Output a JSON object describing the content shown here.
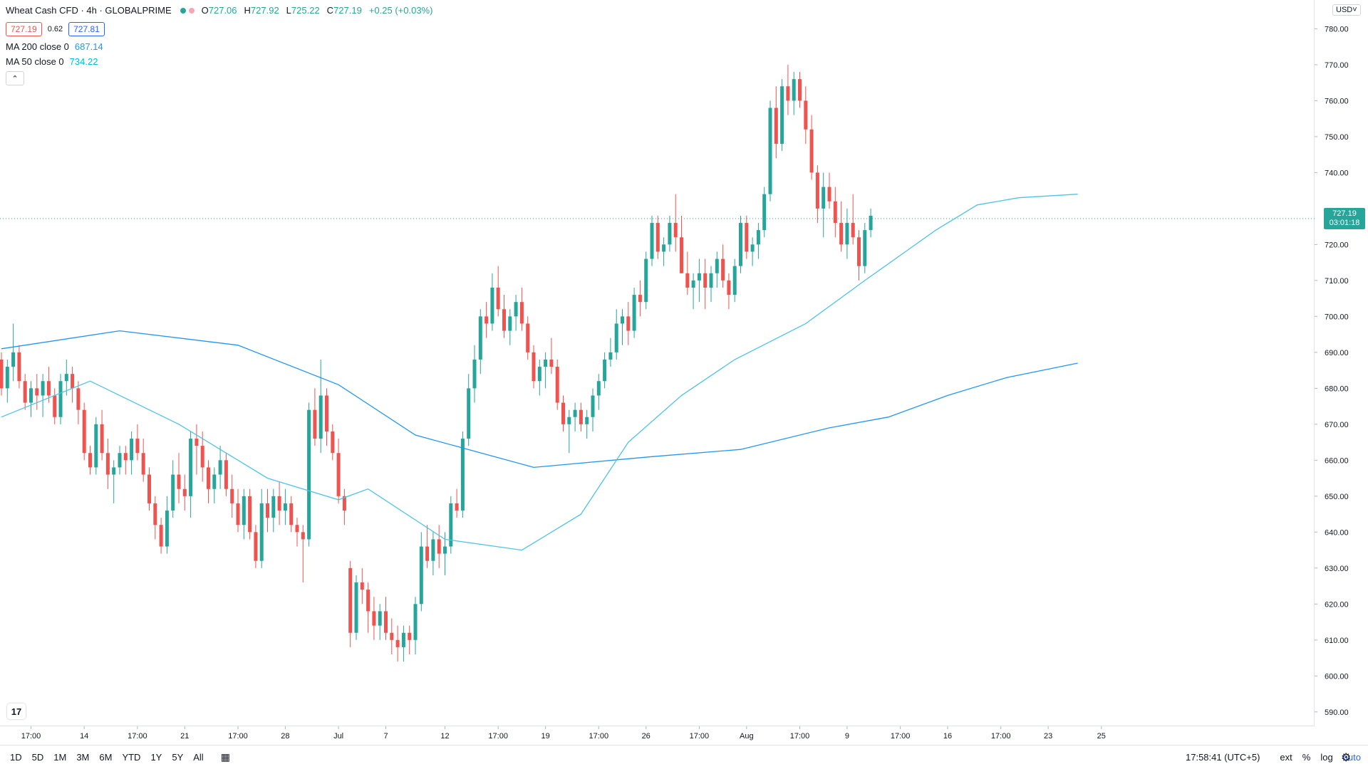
{
  "header": {
    "title": "Wheat Cash CFD · 4h · GLOBALPRIME",
    "ohlc": [
      {
        "label": "O",
        "value": "727.06"
      },
      {
        "label": "H",
        "value": "727.92"
      },
      {
        "label": "L",
        "value": "725.22"
      },
      {
        "label": "C",
        "value": "727.19"
      },
      {
        "label": "",
        "value": "+0.25 (+0.03%)"
      }
    ],
    "sell_price": "727.19",
    "spread": "0.62",
    "buy_price": "727.81"
  },
  "indicators": [
    {
      "label": "MA 200 close 0",
      "value": "687.14",
      "color": "#2196f3"
    },
    {
      "label": "MA 50 close 0",
      "value": "734.22",
      "color": "#00bcd4"
    }
  ],
  "price_axis": {
    "currency": "USD",
    "last_price": "727.19",
    "countdown": "03:01:18"
  },
  "bottom_bar": {
    "timeframes": [
      "1D",
      "5D",
      "1M",
      "3M",
      "6M",
      "YTD",
      "1Y",
      "5Y",
      "All"
    ],
    "time": "17:58:41 (UTC+5)",
    "right_controls": [
      "ext",
      "%",
      "log",
      "auto"
    ]
  },
  "colors": {
    "up": "#26a69a",
    "down": "#ef5350",
    "ma200": "#2196f3",
    "ma50": "#4dc3e6",
    "accent": "#2962ff"
  },
  "chart_data": {
    "type": "candlestick",
    "y_ticks": [
      590,
      600,
      610,
      620,
      630,
      640,
      650,
      660,
      670,
      680,
      690,
      700,
      710,
      720,
      730,
      740,
      750,
      760,
      770,
      780
    ],
    "ylim": [
      586,
      788
    ],
    "x_ticks": [
      {
        "label": "17:00",
        "i": 5
      },
      {
        "label": "14",
        "i": 14
      },
      {
        "label": "17:00",
        "i": 23
      },
      {
        "label": "21",
        "i": 31
      },
      {
        "label": "17:00",
        "i": 40
      },
      {
        "label": "28",
        "i": 48
      },
      {
        "label": "Jul",
        "i": 57
      },
      {
        "label": "7",
        "i": 65
      },
      {
        "label": "12",
        "i": 75
      },
      {
        "label": "17:00",
        "i": 84
      },
      {
        "label": "19",
        "i": 92
      },
      {
        "label": "17:00",
        "i": 101
      },
      {
        "label": "26",
        "i": 109
      },
      {
        "label": "17:00",
        "i": 118
      },
      {
        "label": "Aug",
        "i": 126
      },
      {
        "label": "17:00",
        "i": 135
      },
      {
        "label": "9",
        "i": 143
      },
      {
        "label": "17:00",
        "i": 152
      },
      {
        "label": "16",
        "i": 160
      },
      {
        "label": "17:00",
        "i": 169
      },
      {
        "label": "23",
        "i": 177
      },
      {
        "label": "25",
        "i": 186
      }
    ],
    "candles": [
      [
        688,
        690,
        678,
        680
      ],
      [
        680,
        688,
        676,
        686
      ],
      [
        686,
        698,
        682,
        690
      ],
      [
        690,
        692,
        680,
        682
      ],
      [
        682,
        684,
        674,
        676
      ],
      [
        676,
        682,
        672,
        680
      ],
      [
        680,
        684,
        674,
        678
      ],
      [
        678,
        684,
        672,
        682
      ],
      [
        682,
        686,
        676,
        678
      ],
      [
        678,
        680,
        670,
        672
      ],
      [
        672,
        684,
        670,
        682
      ],
      [
        682,
        688,
        678,
        684
      ],
      [
        684,
        686,
        676,
        680
      ],
      [
        680,
        682,
        670,
        674
      ],
      [
        674,
        676,
        660,
        662
      ],
      [
        662,
        664,
        656,
        658
      ],
      [
        658,
        672,
        656,
        670
      ],
      [
        670,
        674,
        660,
        662
      ],
      [
        662,
        666,
        652,
        656
      ],
      [
        656,
        660,
        648,
        658
      ],
      [
        658,
        664,
        656,
        662
      ],
      [
        662,
        664,
        656,
        660
      ],
      [
        660,
        668,
        656,
        666
      ],
      [
        666,
        670,
        660,
        662
      ],
      [
        662,
        666,
        654,
        656
      ],
      [
        656,
        658,
        646,
        648
      ],
      [
        648,
        650,
        638,
        642
      ],
      [
        642,
        644,
        634,
        636
      ],
      [
        636,
        650,
        634,
        646
      ],
      [
        646,
        660,
        644,
        656
      ],
      [
        656,
        662,
        648,
        652
      ],
      [
        652,
        656,
        646,
        650
      ],
      [
        650,
        668,
        644,
        666
      ],
      [
        666,
        670,
        656,
        664
      ],
      [
        664,
        668,
        654,
        658
      ],
      [
        658,
        660,
        648,
        652
      ],
      [
        652,
        658,
        648,
        656
      ],
      [
        656,
        664,
        652,
        660
      ],
      [
        660,
        662,
        650,
        652
      ],
      [
        652,
        656,
        644,
        648
      ],
      [
        648,
        652,
        640,
        642
      ],
      [
        642,
        652,
        638,
        650
      ],
      [
        650,
        652,
        638,
        640
      ],
      [
        640,
        642,
        630,
        632
      ],
      [
        632,
        652,
        630,
        648
      ],
      [
        648,
        652,
        640,
        644
      ],
      [
        644,
        652,
        640,
        650
      ],
      [
        650,
        654,
        642,
        646
      ],
      [
        646,
        652,
        642,
        648
      ],
      [
        648,
        650,
        640,
        642
      ],
      [
        642,
        644,
        636,
        640
      ],
      [
        640,
        642,
        626,
        638
      ],
      [
        638,
        676,
        636,
        674
      ],
      [
        674,
        680,
        664,
        666
      ],
      [
        666,
        688,
        662,
        678
      ],
      [
        678,
        680,
        664,
        668
      ],
      [
        668,
        670,
        660,
        662
      ],
      [
        662,
        666,
        648,
        650
      ],
      [
        650,
        652,
        642,
        646
      ],
      [
        630,
        632,
        608,
        612
      ],
      [
        612,
        628,
        610,
        626
      ],
      [
        626,
        630,
        620,
        624
      ],
      [
        624,
        626,
        612,
        618
      ],
      [
        618,
        622,
        610,
        614
      ],
      [
        614,
        620,
        610,
        618
      ],
      [
        618,
        622,
        610,
        612
      ],
      [
        612,
        616,
        606,
        610
      ],
      [
        610,
        614,
        604,
        608
      ],
      [
        608,
        614,
        604,
        612
      ],
      [
        612,
        614,
        606,
        610
      ],
      [
        610,
        622,
        606,
        620
      ],
      [
        620,
        640,
        618,
        636
      ],
      [
        636,
        642,
        630,
        632
      ],
      [
        632,
        640,
        628,
        638
      ],
      [
        638,
        642,
        630,
        634
      ],
      [
        634,
        640,
        628,
        636
      ],
      [
        636,
        650,
        634,
        648
      ],
      [
        648,
        652,
        644,
        646
      ],
      [
        646,
        668,
        644,
        666
      ],
      [
        666,
        684,
        664,
        680
      ],
      [
        680,
        692,
        676,
        688
      ],
      [
        688,
        702,
        684,
        700
      ],
      [
        700,
        704,
        694,
        698
      ],
      [
        698,
        712,
        696,
        708
      ],
      [
        708,
        714,
        700,
        702
      ],
      [
        702,
        706,
        694,
        696
      ],
      [
        696,
        702,
        692,
        700
      ],
      [
        700,
        706,
        696,
        704
      ],
      [
        704,
        708,
        696,
        698
      ],
      [
        698,
        700,
        688,
        690
      ],
      [
        690,
        692,
        680,
        682
      ],
      [
        682,
        688,
        678,
        686
      ],
      [
        686,
        690,
        680,
        688
      ],
      [
        688,
        694,
        684,
        686
      ],
      [
        686,
        688,
        674,
        676
      ],
      [
        676,
        678,
        668,
        670
      ],
      [
        670,
        674,
        662,
        672
      ],
      [
        672,
        676,
        668,
        674
      ],
      [
        674,
        676,
        668,
        670
      ],
      [
        670,
        674,
        666,
        672
      ],
      [
        672,
        680,
        668,
        678
      ],
      [
        678,
        684,
        674,
        682
      ],
      [
        682,
        690,
        680,
        688
      ],
      [
        688,
        694,
        686,
        690
      ],
      [
        690,
        702,
        688,
        698
      ],
      [
        698,
        702,
        692,
        700
      ],
      [
        700,
        704,
        692,
        696
      ],
      [
        696,
        708,
        694,
        706
      ],
      [
        706,
        710,
        700,
        704
      ],
      [
        704,
        718,
        702,
        716
      ],
      [
        716,
        728,
        714,
        726
      ],
      [
        726,
        728,
        716,
        718
      ],
      [
        718,
        722,
        714,
        720
      ],
      [
        720,
        728,
        718,
        726
      ],
      [
        726,
        734,
        718,
        722
      ],
      [
        722,
        728,
        712,
        712
      ],
      [
        712,
        718,
        706,
        708
      ],
      [
        708,
        712,
        702,
        710
      ],
      [
        710,
        716,
        704,
        712
      ],
      [
        712,
        716,
        702,
        708
      ],
      [
        708,
        714,
        704,
        712
      ],
      [
        712,
        718,
        708,
        716
      ],
      [
        716,
        720,
        708,
        710
      ],
      [
        710,
        712,
        702,
        706
      ],
      [
        706,
        716,
        704,
        714
      ],
      [
        714,
        728,
        712,
        726
      ],
      [
        726,
        728,
        716,
        718
      ],
      [
        718,
        722,
        714,
        720
      ],
      [
        720,
        726,
        716,
        724
      ],
      [
        724,
        736,
        722,
        734
      ],
      [
        734,
        760,
        732,
        758
      ],
      [
        758,
        764,
        744,
        748
      ],
      [
        748,
        766,
        746,
        764
      ],
      [
        764,
        770,
        756,
        760
      ],
      [
        760,
        768,
        756,
        766
      ],
      [
        766,
        768,
        758,
        760
      ],
      [
        760,
        764,
        748,
        752
      ],
      [
        752,
        756,
        738,
        740
      ],
      [
        740,
        742,
        726,
        730
      ],
      [
        730,
        740,
        722,
        736
      ],
      [
        736,
        740,
        730,
        732
      ],
      [
        732,
        736,
        722,
        726
      ],
      [
        726,
        732,
        718,
        720
      ],
      [
        720,
        730,
        716,
        726
      ],
      [
        726,
        734,
        720,
        722
      ],
      [
        722,
        724,
        710,
        714
      ],
      [
        714,
        726,
        712,
        724
      ],
      [
        724,
        730,
        722,
        728
      ]
    ],
    "ma200": [
      [
        0,
        691
      ],
      [
        20,
        696
      ],
      [
        40,
        692
      ],
      [
        57,
        681
      ],
      [
        70,
        667
      ],
      [
        90,
        658
      ],
      [
        110,
        661
      ],
      [
        125,
        663
      ],
      [
        140,
        669
      ],
      [
        150,
        672
      ],
      [
        160,
        678
      ],
      [
        170,
        683
      ],
      [
        182,
        687
      ]
    ],
    "ma50": [
      [
        0,
        672
      ],
      [
        15,
        682
      ],
      [
        30,
        670
      ],
      [
        45,
        655
      ],
      [
        57,
        649
      ],
      [
        62,
        652
      ],
      [
        75,
        638
      ],
      [
        88,
        635
      ],
      [
        98,
        645
      ],
      [
        106,
        665
      ],
      [
        115,
        678
      ],
      [
        124,
        688
      ],
      [
        136,
        698
      ],
      [
        146,
        710
      ],
      [
        158,
        724
      ],
      [
        165,
        731
      ],
      [
        172,
        733
      ],
      [
        182,
        734
      ]
    ]
  }
}
